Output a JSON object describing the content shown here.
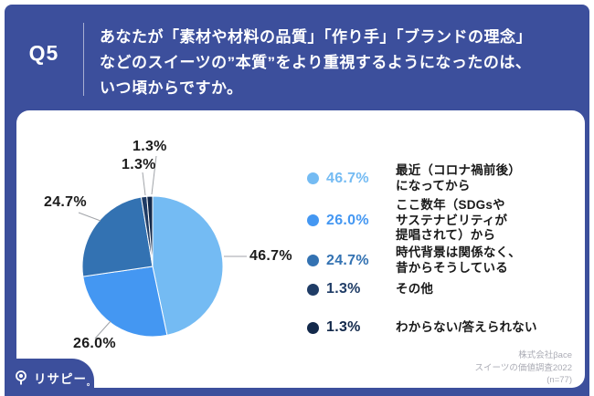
{
  "header": {
    "question_no": "Q5",
    "question": "あなたが「素材や材料の品質」「作り手」「ブランドの理念」\nなどのスイーツの”本質”をより重視するようになったのは、\nいつ頃からですか。"
  },
  "chart_data": {
    "type": "pie",
    "direction": "clockwise",
    "start_angle_deg": 0,
    "unit": "percent",
    "slices": [
      {
        "label": "最近（コロナ禍前後）になってから",
        "value": 46.7,
        "display": "46.7%",
        "color": "#74BBF3"
      },
      {
        "label": "ここ数年（SDGsやサステナビリティが提唱されて）から",
        "value": 26.0,
        "display": "26.0%",
        "color": "#4497F2"
      },
      {
        "label": "時代背景は関係なく、昔からそうしている",
        "value": 24.7,
        "display": "24.7%",
        "color": "#3372B2"
      },
      {
        "label": "その他",
        "value": 1.3,
        "display": "1.3%",
        "color": "#1F3C66"
      },
      {
        "label": "わからない/答えられない",
        "value": 1.3,
        "display": "1.3%",
        "color": "#13294B"
      }
    ]
  },
  "legend": {
    "items": [
      {
        "pct": "46.7%",
        "label": "最近（コロナ禍前後）\nになってから",
        "color": "#74BBF3"
      },
      {
        "pct": "26.0%",
        "label": "ここ数年（SDGsや\nサステナビリティが\n提唱されて）から",
        "color": "#4497F2"
      },
      {
        "pct": "24.7%",
        "label": "時代背景は関係なく、\n昔からそうしている",
        "color": "#3372B2"
      },
      {
        "pct": "1.3%",
        "label": "その他",
        "color": "#1F3C66"
      },
      {
        "pct": "1.3%",
        "label": "わからない/答えられない",
        "color": "#13294B"
      }
    ]
  },
  "footer": {
    "credit_lines": [
      "株式会社βace",
      "スイーツの価値調査2022",
      "(n=77)"
    ],
    "logo_text": "リサピー",
    "logo_mark": "。"
  },
  "colors": {
    "frame_blue": "#3C4F9C",
    "panel_white": "#FFFFFF",
    "leader_line": "#A0A3A8",
    "credit_gray": "#ABACB5"
  }
}
